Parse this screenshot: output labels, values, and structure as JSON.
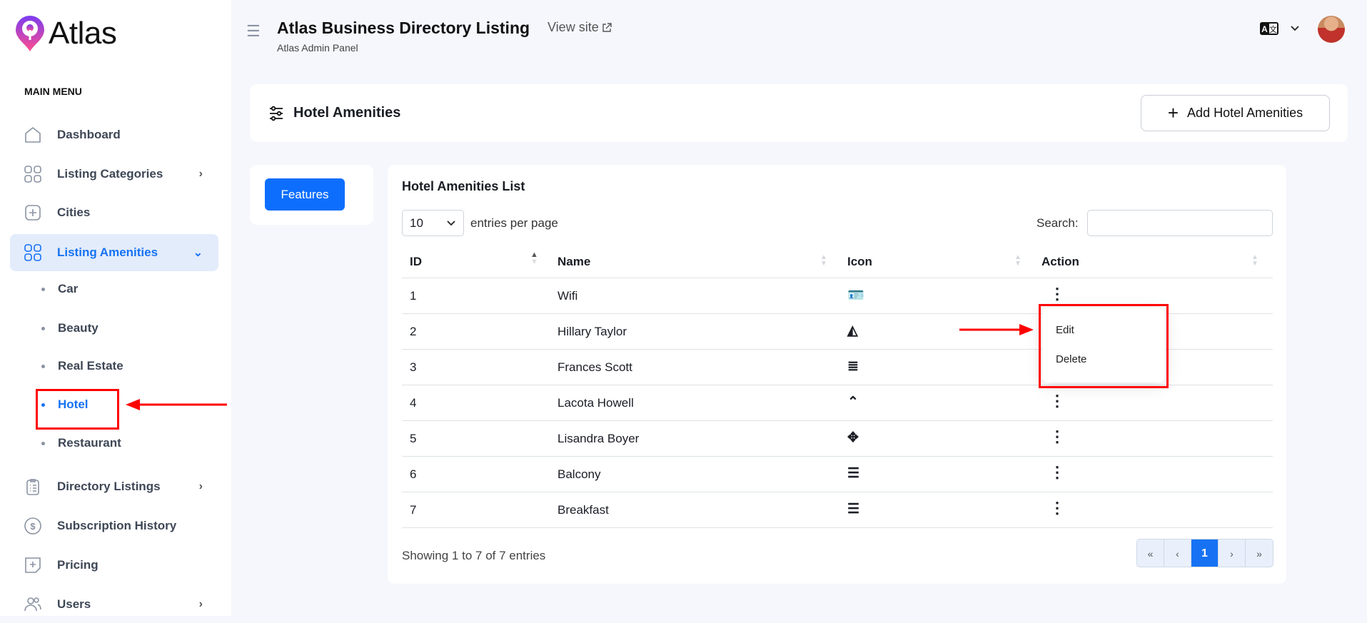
{
  "brand": {
    "name": "Atlas"
  },
  "sidebar": {
    "section": "MAIN MENU",
    "items": [
      {
        "label": "Dashboard",
        "icon": "home-icon"
      },
      {
        "label": "Listing Categories",
        "icon": "grid-icon"
      },
      {
        "label": "Cities",
        "icon": "plus-square-icon"
      },
      {
        "label": "Listing Amenities",
        "icon": "grid-icon"
      },
      {
        "label": "Directory Listings",
        "icon": "clipboard-icon"
      },
      {
        "label": "Subscription History",
        "icon": "dollar-circle-icon"
      },
      {
        "label": "Pricing",
        "icon": "tag-plus-icon"
      },
      {
        "label": "Users",
        "icon": "users-icon"
      }
    ],
    "sub_items": [
      "Car",
      "Beauty",
      "Real Estate",
      "Hotel",
      "Restaurant"
    ]
  },
  "header": {
    "title": "Atlas Business Directory Listing",
    "subtitle": "Atlas Admin Panel",
    "view_site": "View site"
  },
  "page": {
    "title": "Hotel Amenities",
    "add_button": "Add Hotel Amenities",
    "tab": "Features"
  },
  "list": {
    "title": "Hotel Amenities List",
    "entries_value": "10",
    "entries_label": "entries per page",
    "search_label": "Search:",
    "search_value": "",
    "columns": [
      "ID",
      "Name",
      "Icon",
      "Action"
    ],
    "rows": [
      {
        "id": "1",
        "name": "Wifi",
        "icon": "id-card-icon",
        "glyph": "🪪"
      },
      {
        "id": "2",
        "name": "Hillary Taylor",
        "icon": "angular-icon",
        "glyph": "◭"
      },
      {
        "id": "3",
        "name": "Frances Scott",
        "icon": "align-justify-icon",
        "glyph": "≣"
      },
      {
        "id": "4",
        "name": "Lacota Howell",
        "icon": "angles-up-icon",
        "glyph": "⌃"
      },
      {
        "id": "5",
        "name": "Lisandra Boyer",
        "icon": "arrows-move-icon",
        "glyph": "✥"
      },
      {
        "id": "6",
        "name": "Balcony",
        "icon": "align-left-icon",
        "glyph": "☰"
      },
      {
        "id": "7",
        "name": "Breakfast",
        "icon": "align-center-icon",
        "glyph": "☰"
      }
    ],
    "footer": "Showing 1 to 7 of 7 entries",
    "pagination": [
      "«",
      "‹",
      "1",
      "›",
      "»"
    ],
    "current_page": "1"
  },
  "dropdown": {
    "items": [
      "Edit",
      "Delete"
    ]
  },
  "colors": {
    "accent": "#1672f3",
    "button": "#0d6efd",
    "annotation": "#ff0000"
  }
}
